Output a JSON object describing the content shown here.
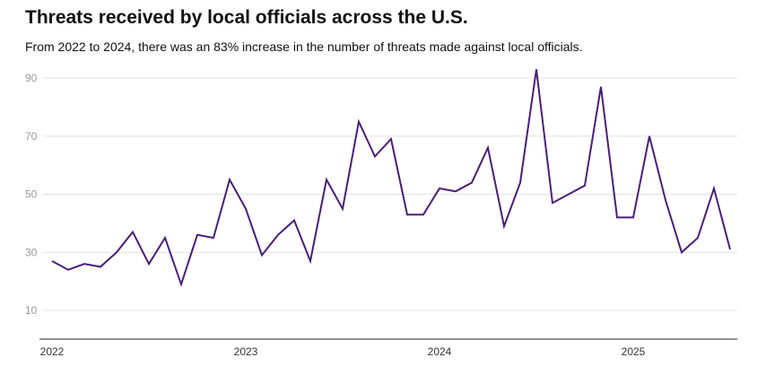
{
  "chart_data": {
    "type": "line",
    "title": "Threats received by local officials across the U.S.",
    "subtitle": "From 2022 to 2024, there was an 83% increase in the number of threats made against local officials.",
    "xlabel": "",
    "ylabel": "",
    "ylim": [
      0,
      95
    ],
    "yticks": [
      10,
      30,
      50,
      70,
      90
    ],
    "ytick_labels": [
      "10",
      "30",
      "50",
      "70",
      "90"
    ],
    "xtick_labels": [
      "2022",
      "2023",
      "2024",
      "2025"
    ],
    "grid": true,
    "x_start": "2022-01",
    "x_interval": "month",
    "series": [
      {
        "name": "Threats",
        "color": "#4b1d7a",
        "values": [
          27,
          24,
          26,
          25,
          30,
          37,
          26,
          35,
          19,
          36,
          35,
          55,
          45,
          29,
          36,
          41,
          27,
          55,
          45,
          75,
          63,
          69,
          43,
          43,
          52,
          51,
          54,
          66,
          39,
          54,
          93,
          47,
          50,
          53,
          87,
          42,
          42,
          70,
          48,
          30,
          35,
          52,
          31
        ]
      }
    ]
  }
}
